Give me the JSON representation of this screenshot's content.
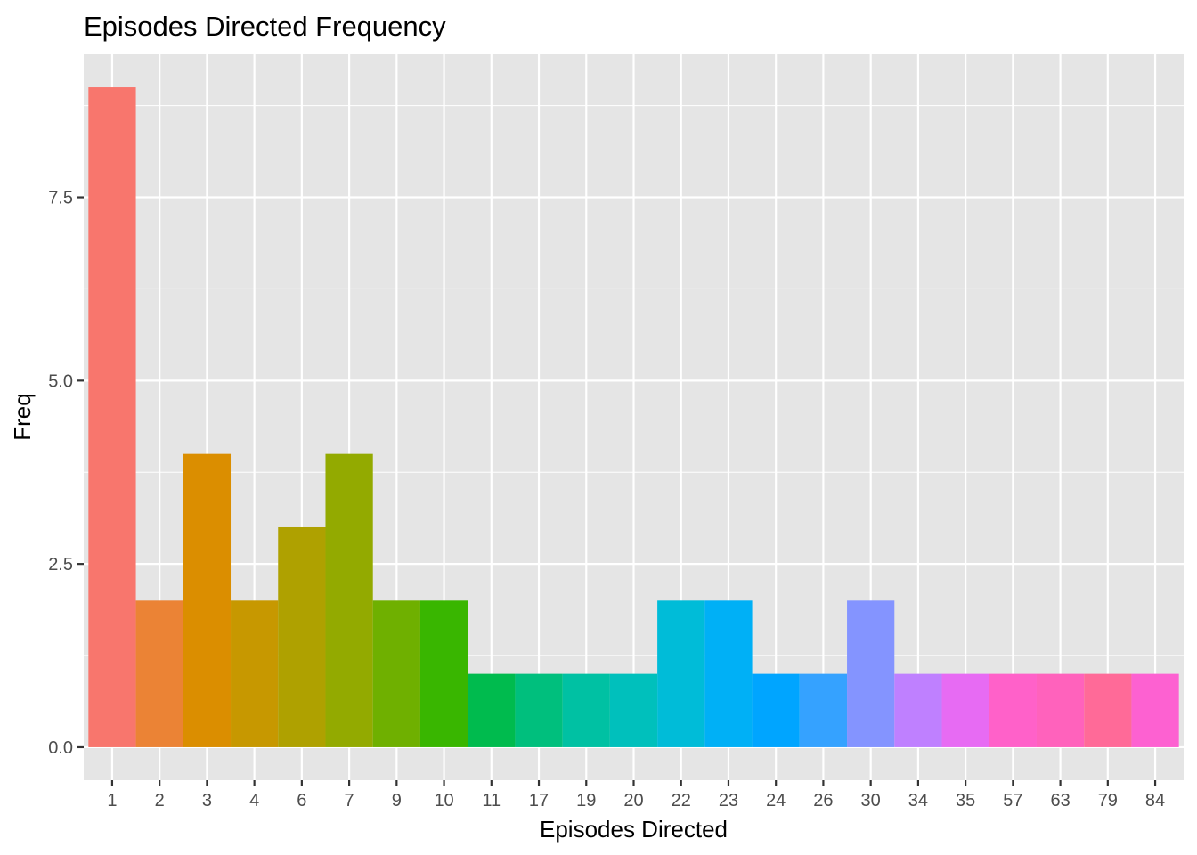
{
  "chart_data": {
    "type": "bar",
    "title": "Episodes Directed Frequency",
    "xlabel": "Episodes Directed",
    "ylabel": "Freq",
    "categories": [
      "1",
      "2",
      "3",
      "4",
      "6",
      "7",
      "9",
      "10",
      "11",
      "17",
      "19",
      "20",
      "22",
      "23",
      "24",
      "26",
      "30",
      "34",
      "35",
      "57",
      "63",
      "79",
      "84"
    ],
    "values": [
      9,
      2,
      4,
      2,
      3,
      4,
      2,
      2,
      1,
      1,
      1,
      1,
      2,
      2,
      1,
      1,
      2,
      1,
      1,
      1,
      1,
      1,
      1
    ],
    "colors": [
      "#F8766D",
      "#EB8335",
      "#DB8E00",
      "#C79800",
      "#AFA100",
      "#93AA00",
      "#6FB000",
      "#39B600",
      "#00BB4E",
      "#00BF7D",
      "#00C1A3",
      "#00C0BC",
      "#00BCD8",
      "#00B0F6",
      "#00A5FF",
      "#35A2FF",
      "#8494FF",
      "#BF80FF",
      "#E76BF3",
      "#FF61C9",
      "#FF62BC",
      "#FF6A98",
      "#FD61D1"
    ],
    "yticks": [
      "0.0",
      "2.5",
      "5.0",
      "7.5"
    ],
    "ytick_values": [
      0,
      2.5,
      5,
      7.5
    ],
    "ylim": [
      -0.45,
      9.45
    ],
    "grid": true,
    "background": "#E5E5E5",
    "grid_color": "#FFFFFF",
    "legend": "none"
  }
}
